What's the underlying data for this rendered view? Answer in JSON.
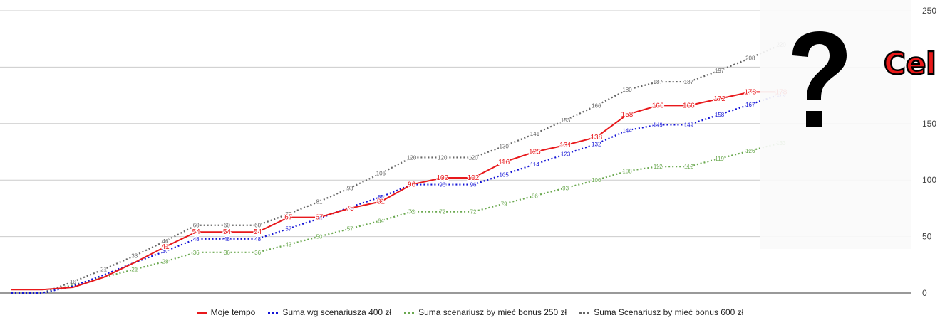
{
  "chart_data": {
    "type": "line",
    "y_axis_side": "right",
    "ylim": [
      0,
      250
    ],
    "yticks": [
      0,
      50,
      100,
      150,
      200,
      250
    ],
    "yticks_visible_labels": [
      "0",
      "50",
      "100",
      "150",
      "250"
    ],
    "grid": true,
    "legend_position": "bottom",
    "series": [
      {
        "name": "Moje tempo",
        "color": "#e8191c",
        "style": "solid",
        "values": [
          3,
          3,
          5,
          14,
          27,
          41,
          54,
          54,
          54,
          67,
          67,
          75,
          81,
          96,
          102,
          102,
          116,
          125,
          131,
          138,
          158,
          166,
          166,
          172,
          178,
          178
        ],
        "labels": [
          "",
          "",
          "",
          "",
          "",
          "41",
          "54",
          "54",
          "54",
          "67",
          "67",
          "75",
          "81",
          "96",
          "102",
          "102",
          "116",
          "125",
          "131",
          "138",
          "158",
          "166",
          "166",
          "172",
          "178",
          "178"
        ]
      },
      {
        "name": "Suma wg scenariusza 400 zł",
        "color": "#1414d6",
        "style": "dotted",
        "values": [
          0,
          0,
          6,
          16,
          27,
          37,
          48,
          48,
          48,
          57,
          66,
          76,
          85,
          96,
          96,
          96,
          105,
          114,
          123,
          132,
          144,
          149,
          149,
          158,
          167,
          176
        ],
        "labels": [
          "",
          "",
          "",
          "",
          "",
          "37",
          "48",
          "48",
          "48",
          "57",
          "66",
          "76",
          "85",
          "96",
          "96",
          "96",
          "105",
          "114",
          "123",
          "132",
          "144",
          "149",
          "149",
          "158",
          "167",
          "176"
        ]
      },
      {
        "name": "Suma scenariusz by mieć bonus 250 zł",
        "color": "#6aa84f",
        "style": "dotted",
        "values": [
          0,
          0,
          7,
          14,
          21,
          28,
          36,
          36,
          36,
          43,
          50,
          57,
          64,
          72,
          72,
          72,
          79,
          86,
          93,
          100,
          108,
          112,
          112,
          119,
          126,
          133
        ],
        "labels": [
          "",
          "",
          "",
          "",
          "21",
          "28",
          "36",
          "36",
          "36",
          "43",
          "50",
          "57",
          "64",
          "72",
          "72",
          "72",
          "79",
          "86",
          "93",
          "100",
          "108",
          "112",
          "112",
          "119",
          "126",
          "133"
        ]
      },
      {
        "name": "Suma Scenariusz by mieć bonus 600 zł",
        "color": "#666666",
        "style": "dotted",
        "values": [
          0,
          0,
          10,
          21,
          33,
          46,
          60,
          60,
          60,
          70,
          81,
          93,
          106,
          120,
          120,
          120,
          130,
          141,
          153,
          166,
          180,
          187,
          187,
          197,
          208,
          220
        ],
        "labels": [
          "",
          "",
          "10",
          "21",
          "33",
          "46",
          "60",
          "60",
          "60",
          "70",
          "81",
          "93",
          "106",
          "120",
          "120",
          "120",
          "130",
          "141",
          "153",
          "166",
          "180",
          "187",
          "187",
          "197",
          "208",
          "220"
        ]
      }
    ]
  },
  "overlay": {
    "question_mark": "?",
    "cel_text": "Cel"
  },
  "legend_items": [
    "Moje tempo",
    "Suma wg scenariusza 400 zł",
    "Suma scenariusz by mieć bonus 250 zł",
    "Suma Scenariusz by mieć bonus 600 zł"
  ]
}
